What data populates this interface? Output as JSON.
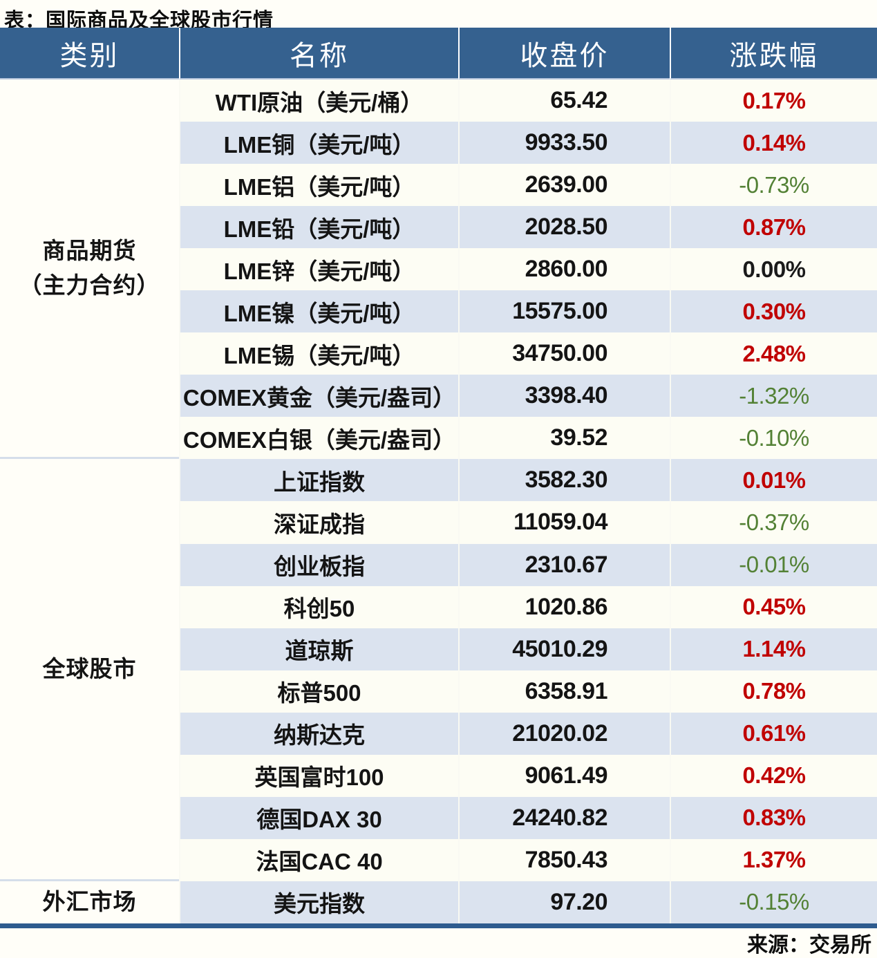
{
  "title": "表：国际商品及全球股市行情",
  "source": "来源：交易所",
  "colors": {
    "page_bg": "#FFFEF8",
    "header_bg": "#35618F",
    "row_cream": "#FDFDF4",
    "row_blue": "#DBE3EF",
    "up_red": "#C00000",
    "down_green": "#538135",
    "flat_black": "#1A1A1A",
    "border_dark": "#2E5C8F",
    "section_sep": "#D5DEEA"
  },
  "table": {
    "columns": [
      "类别",
      "名称",
      "收盘价",
      "涨跌幅"
    ],
    "sections": [
      {
        "category_lines": [
          "商品期货",
          "（主力合约）"
        ],
        "rows": [
          {
            "name": "WTI原油（美元/桶）",
            "close": "65.42",
            "change": "0.17%",
            "direction": "up"
          },
          {
            "name": "LME铜（美元/吨）",
            "close": "9933.50",
            "change": "0.14%",
            "direction": "up"
          },
          {
            "name": "LME铝（美元/吨）",
            "close": "2639.00",
            "change": "-0.73%",
            "direction": "down"
          },
          {
            "name": "LME铅（美元/吨）",
            "close": "2028.50",
            "change": "0.87%",
            "direction": "up"
          },
          {
            "name": "LME锌（美元/吨）",
            "close": "2860.00",
            "change": "0.00%",
            "direction": "flat"
          },
          {
            "name": "LME镍（美元/吨）",
            "close": "15575.00",
            "change": "0.30%",
            "direction": "up"
          },
          {
            "name": "LME锡（美元/吨）",
            "close": "34750.00",
            "change": "2.48%",
            "direction": "up"
          },
          {
            "name": "COMEX黄金（美元/盎司）",
            "close": "3398.40",
            "change": "-1.32%",
            "direction": "down"
          },
          {
            "name": "COMEX白银（美元/盎司）",
            "close": "39.52",
            "change": "-0.10%",
            "direction": "down"
          }
        ]
      },
      {
        "category_lines": [
          "全球股市"
        ],
        "rows": [
          {
            "name": "上证指数",
            "close": "3582.30",
            "change": "0.01%",
            "direction": "up"
          },
          {
            "name": "深证成指",
            "close": "11059.04",
            "change": "-0.37%",
            "direction": "down"
          },
          {
            "name": "创业板指",
            "close": "2310.67",
            "change": "-0.01%",
            "direction": "down"
          },
          {
            "name": "科创50",
            "close": "1020.86",
            "change": "0.45%",
            "direction": "up"
          },
          {
            "name": "道琼斯",
            "close": "45010.29",
            "change": "1.14%",
            "direction": "up"
          },
          {
            "name": "标普500",
            "close": "6358.91",
            "change": "0.78%",
            "direction": "up"
          },
          {
            "name": "纳斯达克",
            "close": "21020.02",
            "change": "0.61%",
            "direction": "up"
          },
          {
            "name": "英国富时100",
            "close": "9061.49",
            "change": "0.42%",
            "direction": "up"
          },
          {
            "name": "德国DAX 30",
            "close": "24240.82",
            "change": "0.83%",
            "direction": "up"
          },
          {
            "name": "法国CAC 40",
            "close": "7850.43",
            "change": "1.37%",
            "direction": "up"
          }
        ]
      },
      {
        "category_lines": [
          "外汇市场"
        ],
        "rows": [
          {
            "name": "美元指数",
            "close": "97.20",
            "change": "-0.15%",
            "direction": "down"
          }
        ]
      }
    ]
  }
}
